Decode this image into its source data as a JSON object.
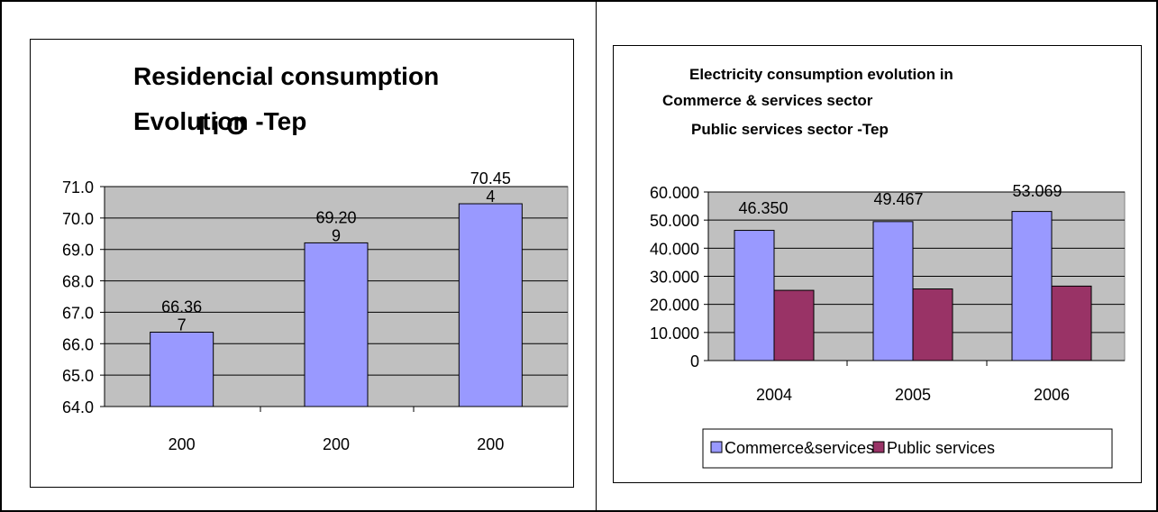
{
  "chart_data": [
    {
      "type": "bar",
      "title_lines": [
        "Residencial  consumption",
        "Evolution -Tep"
      ],
      "title_overlap_fragment": "l  i  O",
      "categories": [
        "200",
        "200",
        "200"
      ],
      "values": [
        66.367,
        69.209,
        70.454
      ],
      "data_labels": [
        [
          "66.36",
          "7"
        ],
        [
          "69.20",
          "9"
        ],
        [
          "70.45",
          "4"
        ]
      ],
      "yticks": [
        "71.0",
        "70.0",
        "69.0",
        "68.0",
        "67.0",
        "66.0",
        "65.0",
        "64.0"
      ],
      "ylim": [
        64,
        71
      ],
      "grid": true,
      "colors": {
        "bar": "#9999ff",
        "plot_bg": "#c0c0c0"
      }
    },
    {
      "type": "bar",
      "title_lines": [
        "Electricity consumption evolution in",
        "Commerce & services sector",
        "Public services sector -Tep"
      ],
      "categories": [
        "2004",
        "2005",
        "2006"
      ],
      "series": [
        {
          "name": "Commerce&services",
          "values": [
            46.35,
            49.467,
            53.069
          ],
          "color": "#9999ff"
        },
        {
          "name": "Public services",
          "values": [
            25.0,
            25.5,
            26.5
          ],
          "color": "#993366"
        }
      ],
      "data_labels": [
        "46.350",
        "49.467",
        "53.069"
      ],
      "yticks": [
        "60.000",
        "50.000",
        "40.000",
        "30.000",
        "20.000",
        "10.000",
        "0"
      ],
      "ylim": [
        0,
        60
      ],
      "grid": true,
      "legend": "bottom",
      "colors": {
        "plot_bg": "#c0c0c0"
      }
    }
  ]
}
